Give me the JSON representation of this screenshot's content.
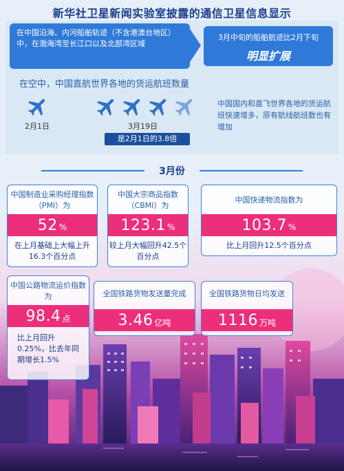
{
  "title": "新华社卫星新闻实验室披露的通信卫星信息显示",
  "top": {
    "left_box": "在中国沿海、内河船舶轨迹（不含港澳台地区）中，在渤海湾至长江口以及北部湾区域",
    "right_box_line1": "3月中旬的船舶航迹比2月下旬",
    "right_box_line2": "明显扩展",
    "flights_heading": "在空中，中国直航世界各地的货运航班数量",
    "label_feb": "2月1日",
    "label_mar": "3月19日",
    "ratio": "是2月1日的3.8倍",
    "right_note": "中国国内和直飞世界各地的货运航班快速增多，原有航线航班数也有增加"
  },
  "march": {
    "title": "3月份",
    "cards": [
      {
        "name": "中国制造业采购经理指数（PMI）为",
        "value": "52",
        "unit": "%",
        "note": "在上月基础上大幅上升16.3个百分点"
      },
      {
        "name": "中国大宗商品指数（CBMI）为",
        "value": "123.1",
        "unit": "%",
        "note": "较上月大幅回升42.5个百分点"
      },
      {
        "name": "中国快递物流指数为",
        "value": "103.7",
        "unit": "%",
        "note": "比上月回升12.5个百分点"
      },
      {
        "name": "中国公路物流运价指数为",
        "value": "98.4",
        "unit": "点",
        "note": "比上月回升0.25%，比去年同期增长1.5%"
      },
      {
        "name": "全国铁路货物发送量完成",
        "value": "3.46",
        "unit": "亿吨",
        "note": ""
      },
      {
        "name": "全国铁路货物日均发送",
        "value": "1116",
        "unit": "万吨",
        "note": ""
      }
    ]
  },
  "colors": {
    "accent": "#ec2f7a",
    "blue": "#2f7ad8",
    "navy": "#1b3d8c"
  }
}
